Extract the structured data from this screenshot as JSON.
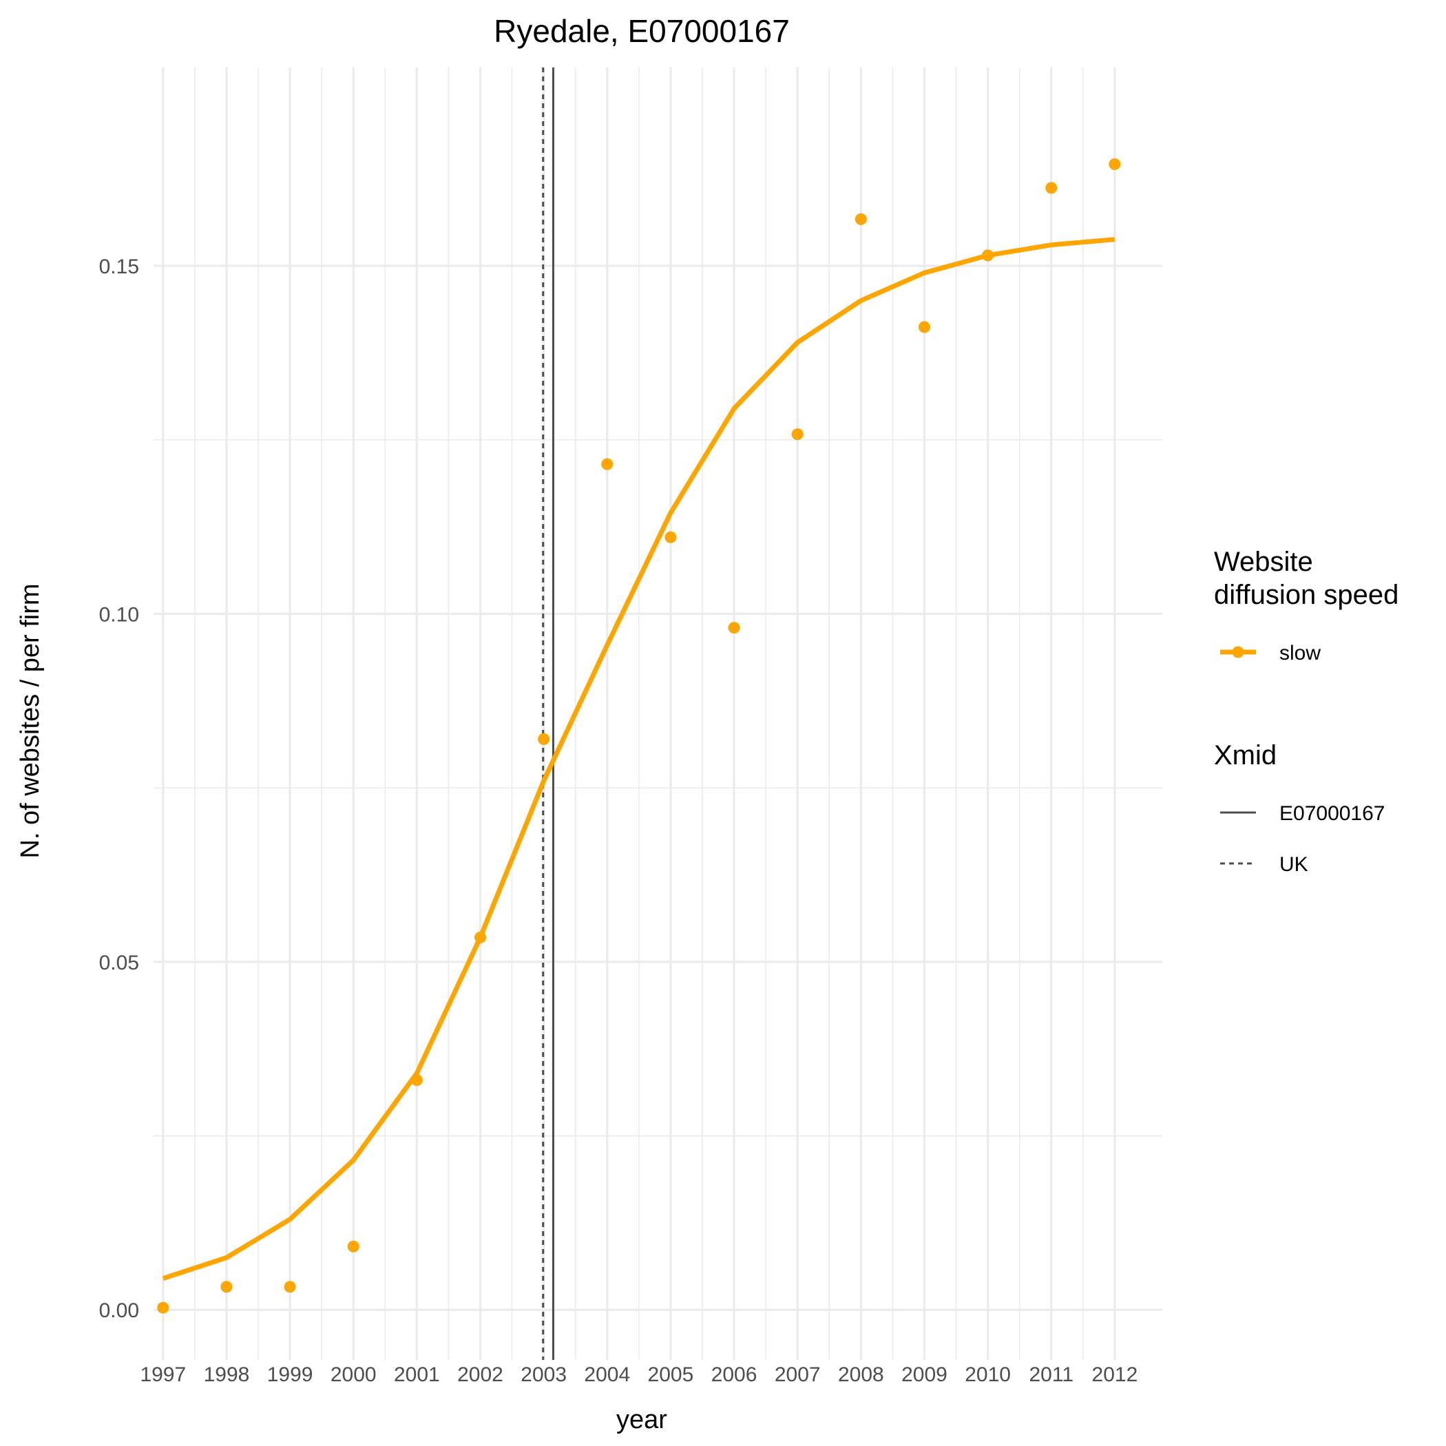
{
  "chart_data": {
    "type": "line",
    "title": "Ryedale, E07000167",
    "xlabel": "year",
    "ylabel": "N. of websites / per firm",
    "x_categories": [
      "1997",
      "1998",
      "1999",
      "2000",
      "2001",
      "2002",
      "2003",
      "2004",
      "2005",
      "2006",
      "2007",
      "2008",
      "2009",
      "2010",
      "2011",
      "2012"
    ],
    "y_ticks": [
      "0.00",
      "0.05",
      "0.10",
      "0.15"
    ],
    "xlim": [
      1996.85,
      2012.75
    ],
    "ylim": [
      -0.0072,
      0.1785
    ],
    "grid": true,
    "series": [
      {
        "name": "slow",
        "kind": "line+points",
        "color": "#FFA500",
        "fitted": [
          0.0045,
          0.0075,
          0.013,
          0.0215,
          0.034,
          0.0535,
          0.076,
          0.0955,
          0.1145,
          0.1295,
          0.139,
          0.145,
          0.149,
          0.1515,
          0.153,
          0.1538
        ],
        "observed": [
          0.0003,
          0.0033,
          0.0033,
          0.0091,
          0.033,
          0.0535,
          0.082,
          0.1215,
          0.111,
          0.098,
          0.1258,
          0.1567,
          0.1412,
          0.1515,
          0.1612,
          0.1646
        ]
      }
    ],
    "vlines": [
      {
        "name": "E07000167",
        "x": 2003.15,
        "linetype": "solid",
        "color": "#4d4d4d"
      },
      {
        "name": "UK",
        "x": 2002.99,
        "linetype": "dashed",
        "color": "#4d4d4d"
      }
    ],
    "legend": {
      "position": "right",
      "groups": [
        {
          "title_lines": [
            "Website",
            "diffusion speed"
          ],
          "items": [
            {
              "label": "slow",
              "type": "line+point",
              "color": "#FFA500"
            }
          ]
        },
        {
          "title_lines": [
            "Xmid"
          ],
          "items": [
            {
              "label": "E07000167",
              "type": "solid",
              "color": "#4d4d4d"
            },
            {
              "label": "UK",
              "type": "dashed",
              "color": "#4d4d4d"
            }
          ]
        }
      ]
    }
  }
}
